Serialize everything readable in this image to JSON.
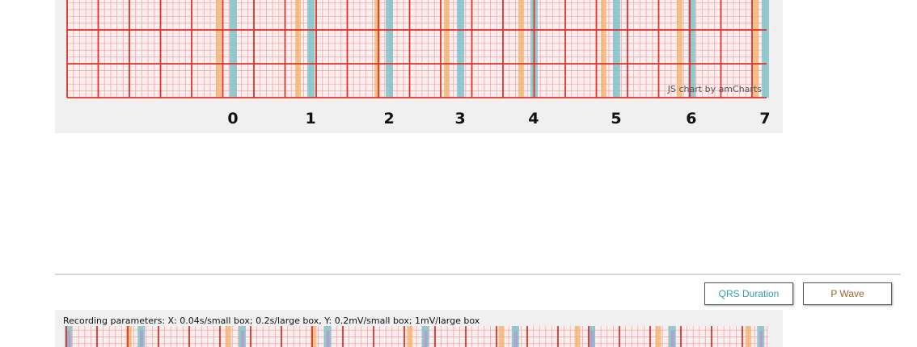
{
  "colors": {
    "grid_major": "#e0332a",
    "grid_minor": "#f2a9a9",
    "background": "#fbeeee",
    "qrs": "#7fc3c9",
    "p_wave": "#f0b36a",
    "t_wave": "#b59ac9"
  },
  "chart_data": {
    "type": "ecg-strip",
    "xlabel": "",
    "ylabel": "",
    "grid": true,
    "x_unit_seconds_per_small_box": 0.04,
    "x_unit_seconds_per_large_box": 0.2,
    "y_unit_mV_per_small_box": 0.2,
    "y_unit_mV_per_large_box": 1,
    "visible_seconds": 4.5,
    "beat_labels": [
      "0",
      "1",
      "2",
      "3",
      "4",
      "5",
      "6",
      "7"
    ],
    "qrs_times_s": [
      1.065,
      1.564,
      2.068,
      2.525,
      2.997,
      3.527,
      4.01,
      4.483
    ],
    "p_wave_times_s": [
      0.971,
      1.481,
      1.99,
      2.436,
      2.914,
      3.444,
      3.932,
      4.42
    ],
    "credit": "JS chart by amCharts"
  },
  "controls": {
    "qrs_label": "QRS Duration",
    "p_label": "P Wave"
  },
  "overview": {
    "recording_parameters": "Recording parameters: X: 0.04s/small box; 0.2s/large box, Y: 0.2mV/small box; 1mV/large box",
    "qrs_times_s": [
      0.01,
      0.48,
      1.13,
      1.68,
      2.31,
      2.89,
      3.38,
      3.9,
      4.47
    ],
    "p_wave_times_s": [
      0.4,
      1.04,
      1.59,
      2.21,
      2.8,
      3.29,
      3.81,
      4.39
    ]
  }
}
